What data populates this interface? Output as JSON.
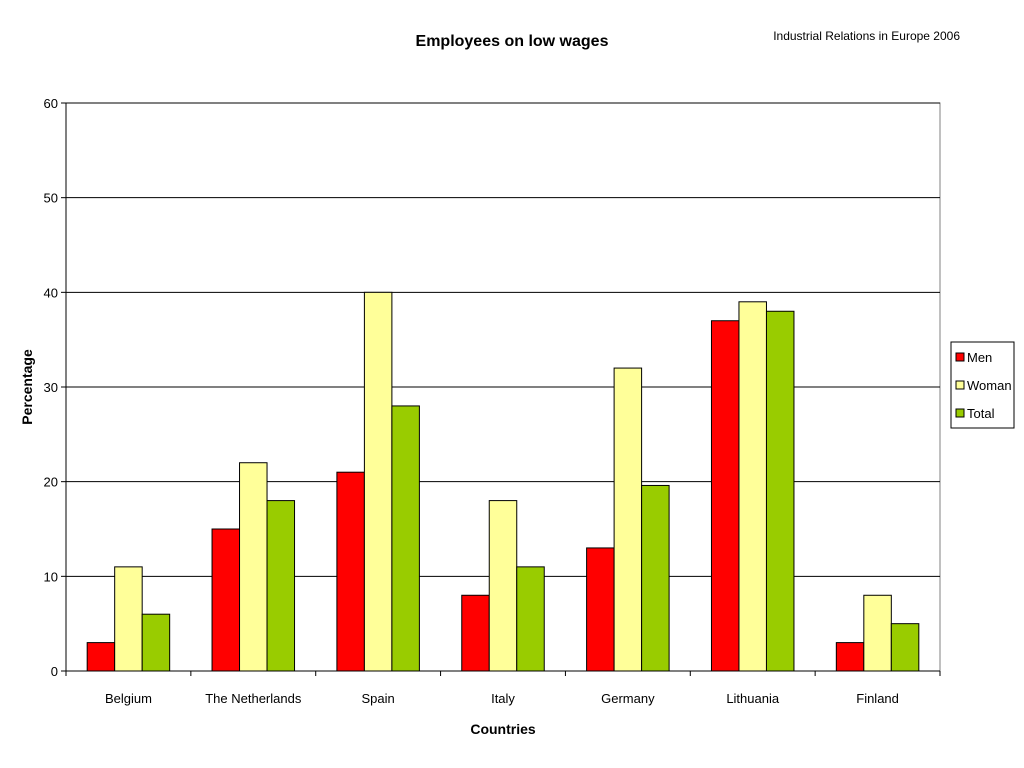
{
  "source_note": "Industrial Relations in Europe 2006",
  "chart_data": {
    "type": "bar",
    "title": "Employees on low wages",
    "xlabel": "Countries",
    "ylabel": "Percentage",
    "ylim": [
      0,
      60
    ],
    "yticks": [
      0,
      10,
      20,
      30,
      40,
      50,
      60
    ],
    "grid": true,
    "legend_position": "right",
    "categories": [
      "Belgium",
      "The Netherlands",
      "Spain",
      "Italy",
      "Germany",
      "Lithuania",
      "Finland"
    ],
    "series": [
      {
        "name": "Men",
        "color": "#ff0000",
        "values": [
          3,
          15,
          21,
          8,
          13,
          37,
          3
        ]
      },
      {
        "name": "Woman",
        "color": "#ffff99",
        "values": [
          11,
          22,
          40,
          18,
          32,
          39,
          8
        ]
      },
      {
        "name": "Total",
        "color": "#99cc00",
        "values": [
          6,
          18,
          28,
          11,
          19.6,
          38,
          5
        ]
      }
    ]
  }
}
